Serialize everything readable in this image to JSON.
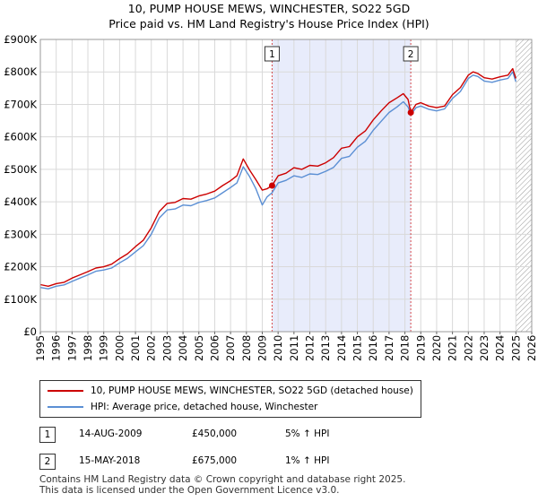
{
  "title": "10, PUMP HOUSE MEWS, WINCHESTER, SO22 5GD",
  "subtitle": "Price paid vs. HM Land Registry's House Price Index (HPI)",
  "chart_data": {
    "type": "line",
    "title": "10, PUMP HOUSE MEWS, WINCHESTER, SO22 5GD",
    "subtitle": "Price paid vs. HM Land Registry's House Price Index (HPI)",
    "xlim": [
      1995,
      2026
    ],
    "ylim": [
      0,
      900000
    ],
    "x_ticks": [
      "1995",
      "1996",
      "1997",
      "1998",
      "1999",
      "2000",
      "2001",
      "2002",
      "2003",
      "2004",
      "2005",
      "2006",
      "2007",
      "2008",
      "2009",
      "2010",
      "2011",
      "2012",
      "2013",
      "2014",
      "2015",
      "2016",
      "2017",
      "2018",
      "2019",
      "2020",
      "2021",
      "2022",
      "2023",
      "2024",
      "2025",
      "2026"
    ],
    "y_ticks": [
      {
        "value": 0,
        "label": "£0"
      },
      {
        "value": 100000,
        "label": "£100K"
      },
      {
        "value": 200000,
        "label": "£200K"
      },
      {
        "value": 300000,
        "label": "£300K"
      },
      {
        "value": 400000,
        "label": "£400K"
      },
      {
        "value": 500000,
        "label": "£500K"
      },
      {
        "value": 600000,
        "label": "£600K"
      },
      {
        "value": 700000,
        "label": "£700K"
      },
      {
        "value": 800000,
        "label": "£800K"
      },
      {
        "value": 900000,
        "label": "£900K"
      }
    ],
    "shaded_region": {
      "x_start": 2009.62,
      "x_end": 2018.37,
      "color": "#e8ecfb"
    },
    "future_hatch_from": 2025.0,
    "series": [
      {
        "name": "10, PUMP HOUSE MEWS, WINCHESTER, SO22 5GD (detached house)",
        "color": "#cc0000",
        "x": [
          1995.0,
          1995.5,
          1996.0,
          1996.5,
          1997.0,
          1997.5,
          1998.0,
          1998.5,
          1999.0,
          1999.5,
          2000.0,
          2000.5,
          2001.0,
          2001.5,
          2002.0,
          2002.5,
          2003.0,
          2003.5,
          2004.0,
          2004.5,
          2005.0,
          2005.5,
          2006.0,
          2006.5,
          2007.0,
          2007.4,
          2007.8,
          2008.2,
          2008.6,
          2009.0,
          2009.3,
          2009.62,
          2010.0,
          2010.5,
          2011.0,
          2011.5,
          2012.0,
          2012.5,
          2013.0,
          2013.5,
          2014.0,
          2014.5,
          2015.0,
          2015.5,
          2016.0,
          2016.5,
          2017.0,
          2017.5,
          2017.9,
          2018.2,
          2018.37,
          2018.7,
          2019.0,
          2019.5,
          2020.0,
          2020.5,
          2021.0,
          2021.5,
          2022.0,
          2022.3,
          2022.6,
          2023.0,
          2023.5,
          2024.0,
          2024.5,
          2024.8,
          2025.0
        ],
        "values": [
          145000,
          140000,
          148000,
          152000,
          165000,
          175000,
          185000,
          196000,
          200000,
          208000,
          225000,
          240000,
          262000,
          282000,
          320000,
          370000,
          395000,
          398000,
          410000,
          408000,
          418000,
          424000,
          433000,
          450000,
          465000,
          480000,
          532000,
          498000,
          468000,
          436000,
          440000,
          450000,
          480000,
          488000,
          505000,
          500000,
          512000,
          510000,
          520000,
          536000,
          565000,
          570000,
          600000,
          618000,
          652000,
          680000,
          705000,
          720000,
          733000,
          715000,
          675000,
          700000,
          705000,
          695000,
          690000,
          695000,
          730000,
          752000,
          790000,
          800000,
          795000,
          782000,
          778000,
          785000,
          790000,
          810000,
          780000
        ]
      },
      {
        "name": "HPI: Average price, detached house, Winchester",
        "color": "#5b8fd4",
        "x": [
          1995.0,
          1995.5,
          1996.0,
          1996.5,
          1997.0,
          1997.5,
          1998.0,
          1998.5,
          1999.0,
          1999.5,
          2000.0,
          2000.5,
          2001.0,
          2001.5,
          2002.0,
          2002.5,
          2003.0,
          2003.5,
          2004.0,
          2004.5,
          2005.0,
          2005.5,
          2006.0,
          2006.5,
          2007.0,
          2007.4,
          2007.8,
          2008.2,
          2008.6,
          2009.0,
          2009.3,
          2009.62,
          2010.0,
          2010.5,
          2011.0,
          2011.5,
          2012.0,
          2012.5,
          2013.0,
          2013.5,
          2014.0,
          2014.5,
          2015.0,
          2015.5,
          2016.0,
          2016.5,
          2017.0,
          2017.5,
          2017.9,
          2018.2,
          2018.37,
          2018.7,
          2019.0,
          2019.5,
          2020.0,
          2020.5,
          2021.0,
          2021.5,
          2022.0,
          2022.3,
          2022.6,
          2023.0,
          2023.5,
          2024.0,
          2024.5,
          2024.8,
          2025.0
        ],
        "values": [
          136000,
          132000,
          140000,
          144000,
          155000,
          165000,
          175000,
          186000,
          190000,
          196000,
          212000,
          226000,
          246000,
          265000,
          300000,
          350000,
          375000,
          378000,
          390000,
          388000,
          398000,
          404000,
          412000,
          428000,
          444000,
          458000,
          508000,
          478000,
          440000,
          390000,
          415000,
          428000,
          458000,
          466000,
          480000,
          475000,
          486000,
          484000,
          494000,
          506000,
          534000,
          540000,
          568000,
          586000,
          620000,
          648000,
          675000,
          692000,
          708000,
          692000,
          668000,
          690000,
          695000,
          685000,
          680000,
          686000,
          718000,
          740000,
          780000,
          790000,
          786000,
          772000,
          768000,
          775000,
          780000,
          800000,
          770000
        ]
      }
    ],
    "annotations": [
      {
        "label": "1",
        "x": 2009.62,
        "y": 450000
      },
      {
        "label": "2",
        "x": 2018.37,
        "y": 675000
      }
    ]
  },
  "legend": {
    "items": [
      {
        "label": "10, PUMP HOUSE MEWS, WINCHESTER, SO22 5GD (detached house)",
        "color": "#cc0000"
      },
      {
        "label": "HPI: Average price, detached house, Winchester",
        "color": "#5b8fd4"
      }
    ]
  },
  "sales": [
    {
      "num": "1",
      "date": "14-AUG-2009",
      "price": "£450,000",
      "hpi": "5% ↑ HPI"
    },
    {
      "num": "2",
      "date": "15-MAY-2018",
      "price": "£675,000",
      "hpi": "1% ↑ HPI"
    }
  ],
  "footer": {
    "line1": "Contains HM Land Registry data © Crown copyright and database right 2025.",
    "line2": "This data is licensed under the Open Government Licence v3.0."
  }
}
